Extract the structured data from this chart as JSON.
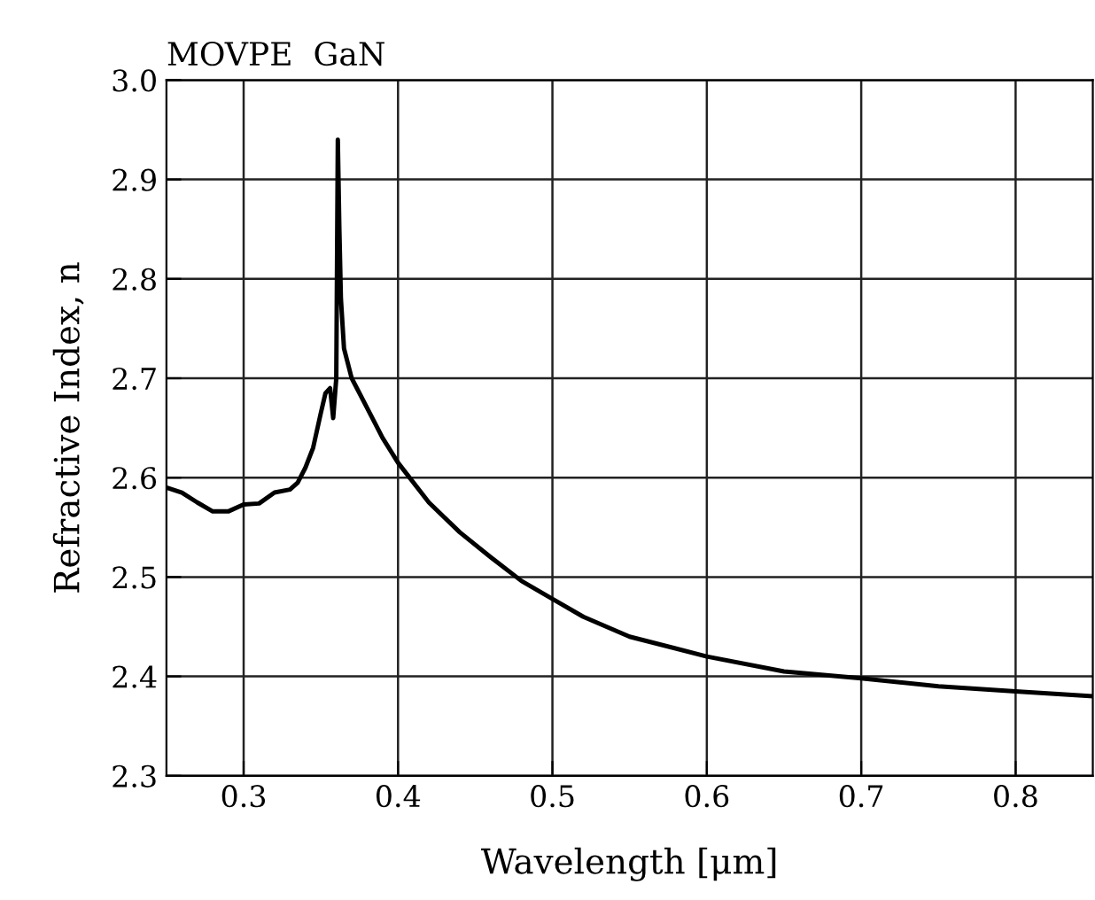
{
  "chart_data": {
    "type": "line",
    "title": "MOVPE  GaN",
    "xlabel": "Wavelength [μm]",
    "ylabel": "Refractive Index, n",
    "series": [
      {
        "color": "#000000",
        "x": [
          0.25,
          0.26,
          0.27,
          0.28,
          0.29,
          0.3,
          0.31,
          0.32,
          0.33,
          0.335,
          0.34,
          0.345,
          0.35,
          0.353,
          0.356,
          0.358,
          0.36,
          0.361,
          0.362,
          0.363,
          0.365,
          0.37,
          0.38,
          0.39,
          0.4,
          0.42,
          0.44,
          0.46,
          0.48,
          0.5,
          0.52,
          0.55,
          0.6,
          0.65,
          0.7,
          0.75,
          0.8,
          0.85
        ],
        "values": [
          2.59,
          2.585,
          2.575,
          2.566,
          2.566,
          2.573,
          2.574,
          2.585,
          2.588,
          2.595,
          2.61,
          2.63,
          2.665,
          2.685,
          2.69,
          2.66,
          2.7,
          2.94,
          2.85,
          2.78,
          2.73,
          2.7,
          2.67,
          2.64,
          2.615,
          2.575,
          2.545,
          2.52,
          2.496,
          2.478,
          2.46,
          2.44,
          2.42,
          2.405,
          2.398,
          2.39,
          2.385,
          2.38
        ]
      }
    ],
    "xlim": [
      0.25,
      0.85
    ],
    "ylim": [
      2.3,
      3.0
    ],
    "xticks": [
      0.3,
      0.4,
      0.5,
      0.6,
      0.7,
      0.8
    ],
    "yticks": [
      {
        "value": 2.3,
        "label": "2.3"
      },
      2.4,
      2.5,
      2.6,
      2.7,
      2.8,
      2.9,
      {
        "value": 3.0,
        "label": "3.0"
      }
    ],
    "grid": true,
    "marker": "none",
    "line_style": "solid"
  }
}
